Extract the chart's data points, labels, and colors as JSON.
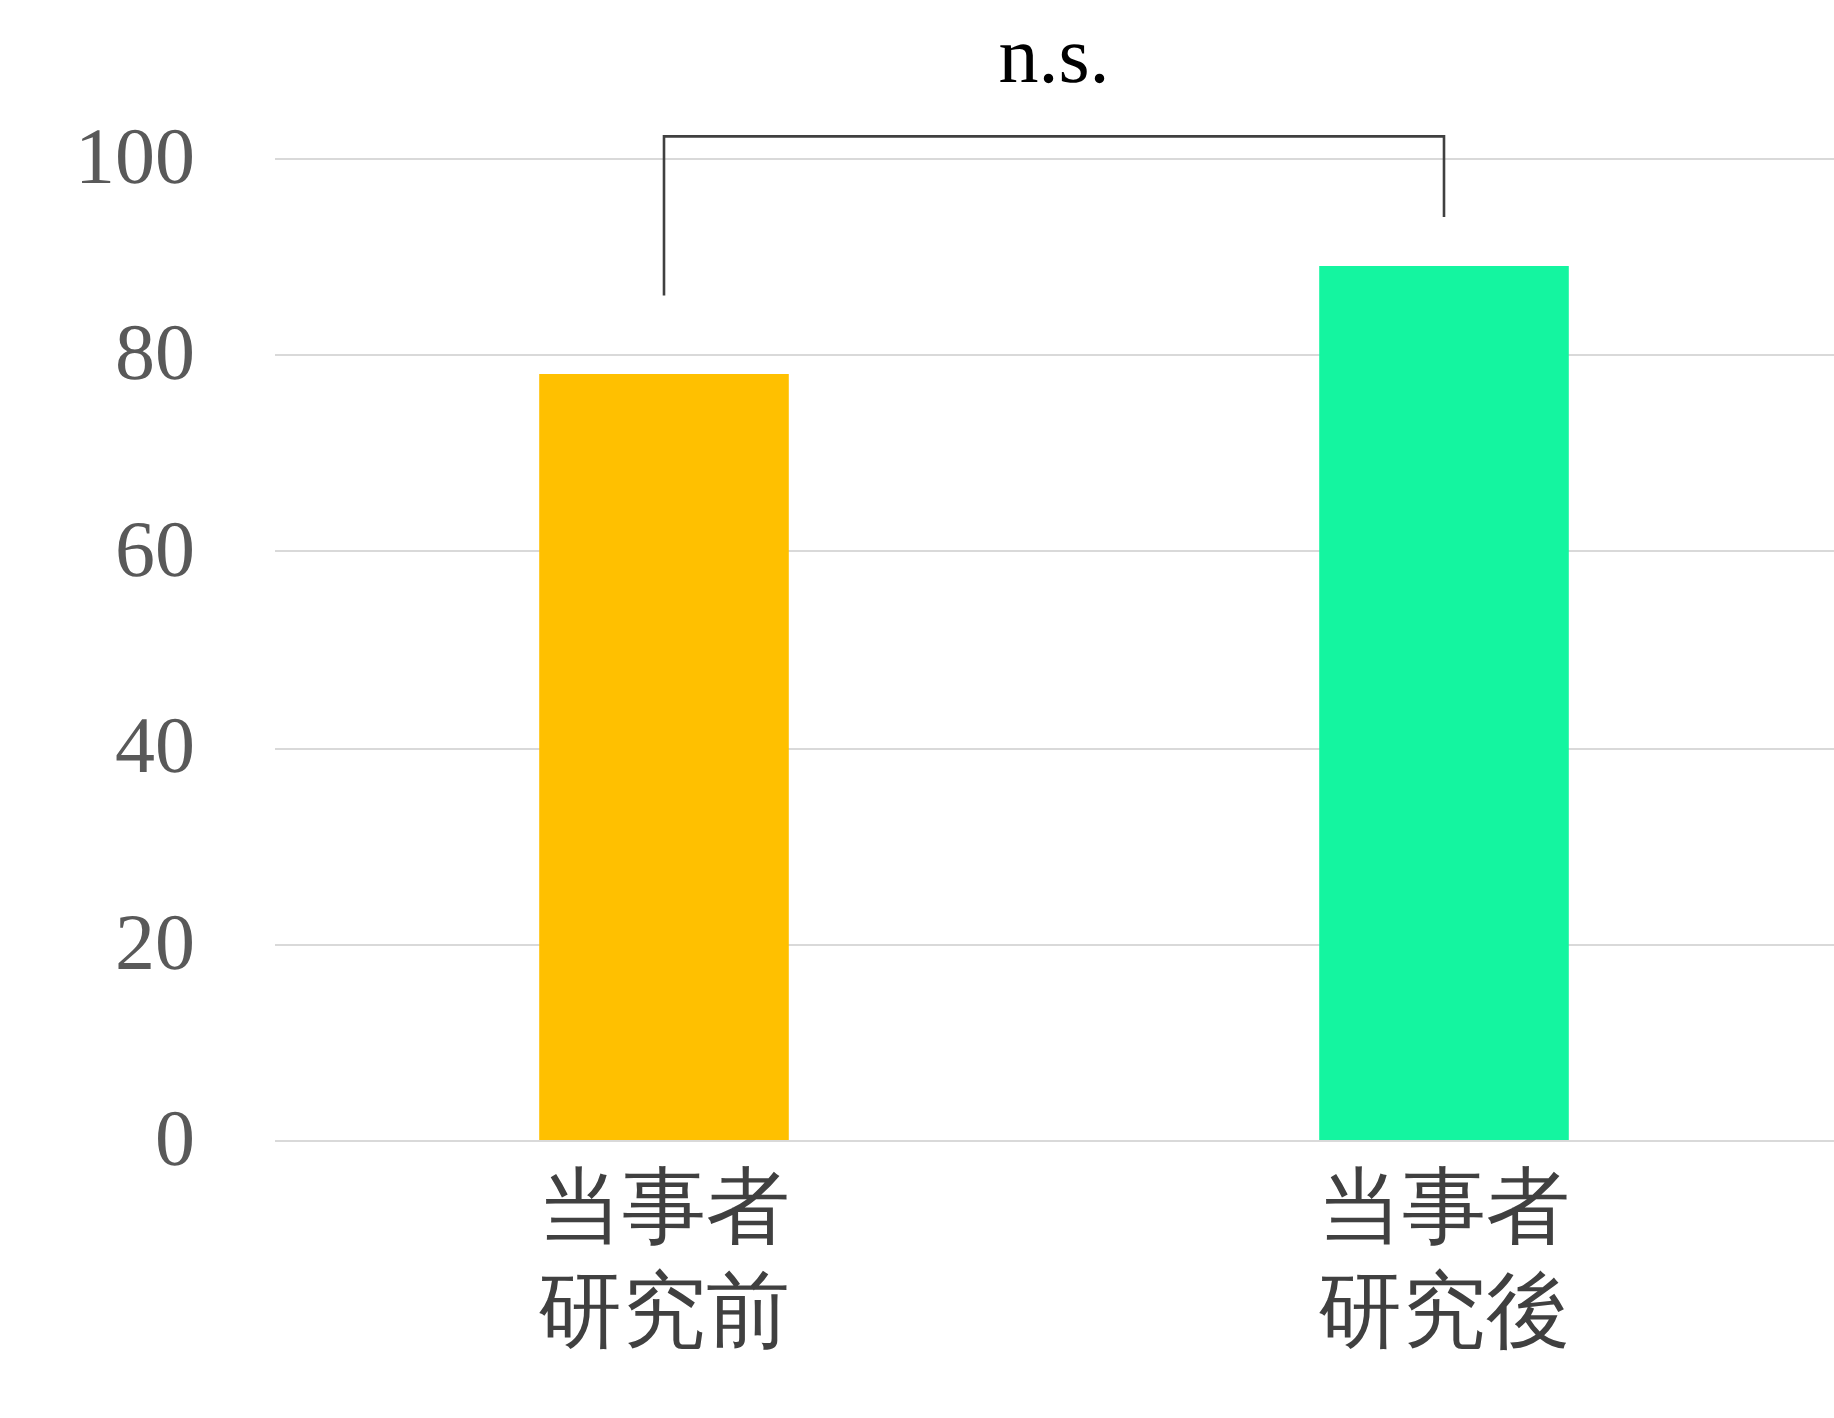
{
  "chart_data": {
    "type": "bar",
    "categories": [
      "当事者研究前",
      "当事者研究後"
    ],
    "values": [
      78,
      89
    ],
    "colors": [
      "#ffc000",
      "#14f5a0"
    ],
    "ylim": [
      0,
      100
    ],
    "yticks": [
      0,
      20,
      40,
      60,
      80,
      100
    ],
    "grid": "y",
    "annotations": [
      "n.s."
    ]
  }
}
